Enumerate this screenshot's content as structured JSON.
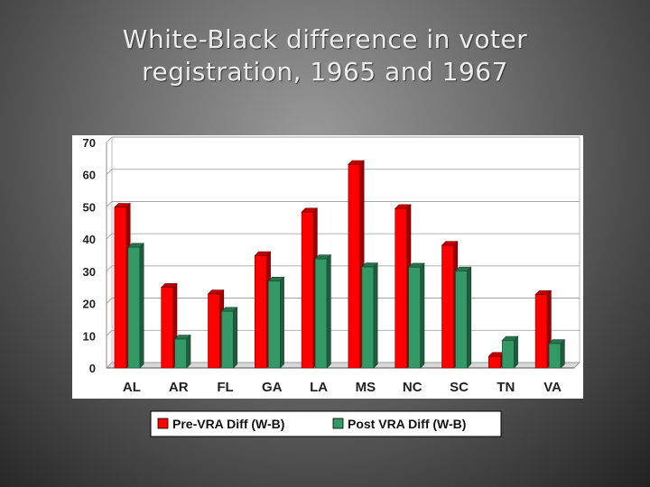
{
  "slide": {
    "title_line1": "White-Black difference in voter",
    "title_line2": "registration, 1965 and 1967"
  },
  "chart_data": {
    "type": "bar",
    "title": "",
    "xlabel": "",
    "ylabel": "",
    "categories": [
      "AL",
      "AR",
      "FL",
      "GA",
      "LA",
      "MS",
      "NC",
      "SC",
      "TN",
      "VA"
    ],
    "series": [
      {
        "name": "Pre-VRA Diff (W-B)",
        "color": "#ff0000",
        "values": [
          49.9,
          25.0,
          23.0,
          34.9,
          48.4,
          63.2,
          49.5,
          38.1,
          3.6,
          22.8
        ]
      },
      {
        "name": "Post VRA Diff (W-B)",
        "color": "#339966",
        "values": [
          37.5,
          9.0,
          17.6,
          27.0,
          33.9,
          31.4,
          31.3,
          30.1,
          8.6,
          7.6
        ]
      }
    ],
    "ylim": [
      0,
      70
    ],
    "yticks": [
      "0",
      "10",
      "20",
      "30",
      "40",
      "50",
      "60",
      "70"
    ],
    "grid": true,
    "legend_position": "bottom"
  }
}
